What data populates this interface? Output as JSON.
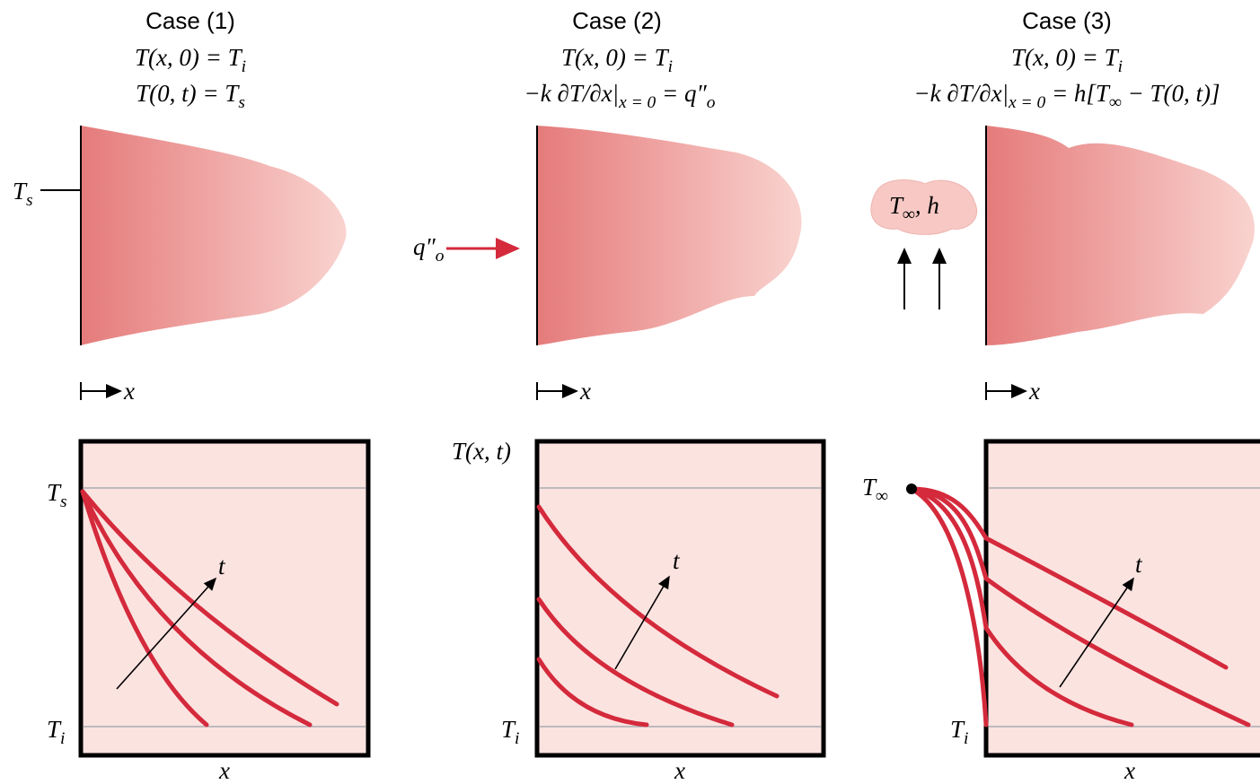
{
  "cases": [
    {
      "title": "Case (1)",
      "initial": [
        "T(x, 0) = T",
        "i"
      ],
      "boundary": [
        "T(0, t) = T",
        "s"
      ],
      "surface_label": [
        "T",
        "s"
      ],
      "x_label": "x",
      "upper_label": [
        "T",
        "s"
      ],
      "lower_label": [
        "T",
        "i"
      ],
      "time_label": "t",
      "axis_label": "x"
    },
    {
      "title": "Case (2)",
      "initial": [
        "T(x, 0) = T",
        "i"
      ],
      "boundary": [
        "−k ∂T/∂x|",
        "x = 0",
        " = q″",
        "o"
      ],
      "flux_label": [
        "q″",
        "o"
      ],
      "x_label": "x",
      "y_axis_label": "T(x, t)",
      "lower_label": [
        "T",
        "i"
      ],
      "time_label": "t",
      "axis_label": "x"
    },
    {
      "title": "Case (3)",
      "initial": [
        "T(x, 0) = T",
        "i"
      ],
      "boundary": [
        "−k ∂T/∂x|",
        "x = 0",
        " = h[T",
        "∞",
        " − T(0, t)]"
      ],
      "fluid_label": [
        "T",
        "∞",
        ", h"
      ],
      "x_label": "x",
      "upper_label": [
        "T",
        "∞"
      ],
      "lower_label": [
        "T",
        "i"
      ],
      "time_label": "t",
      "axis_label": "x"
    }
  ]
}
